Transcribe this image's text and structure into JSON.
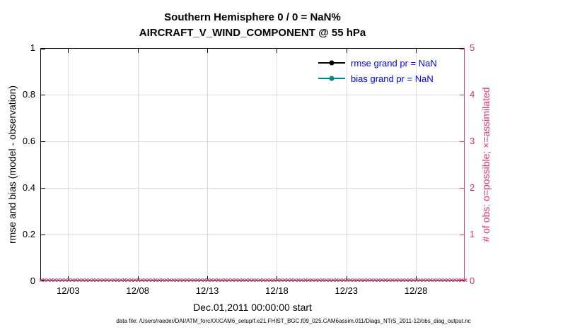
{
  "chart_data": {
    "type": "line",
    "title": "Southern Hemisphere 0 / 0 = NaN%",
    "subtitle": "AIRCRAFT_V_WIND_COMPONENT @ 55 hPa",
    "xlabel": "Dec.01,2011 00:00:00 start",
    "ylabel_left": "rmse and bias (model - observation)",
    "ylabel_right": "# of obs: o=possible; ×=assimilated",
    "ylim_left": [
      0,
      1
    ],
    "ylim_right": [
      0,
      5
    ],
    "yticks_left": [
      "0",
      "0.2",
      "0.4",
      "0.6",
      "0.8",
      "1"
    ],
    "yticks_right": [
      "0",
      "1",
      "2",
      "3",
      "4",
      "5"
    ],
    "x_range_days": [
      1,
      31.5
    ],
    "xticks": [
      {
        "day": 3,
        "label": "12/03"
      },
      {
        "day": 8,
        "label": "12/08"
      },
      {
        "day": 13,
        "label": "12/13"
      },
      {
        "day": 18,
        "label": "12/18"
      },
      {
        "day": 23,
        "label": "12/23"
      },
      {
        "day": 28,
        "label": "12/28"
      }
    ],
    "grid": true,
    "legend": [
      {
        "label": "rmse grand pr = NaN",
        "color": "#000000"
      },
      {
        "label": "bias grand pr = NaN",
        "color": "#008888"
      }
    ],
    "legend_text_color": "#0000ff",
    "series": [
      {
        "name": "rmse",
        "axis": "left",
        "grand_pr": "NaN",
        "values": [],
        "note": "NaN - no line plotted"
      },
      {
        "name": "bias",
        "axis": "left",
        "grand_pr": "NaN",
        "values": [],
        "note": "NaN - no line plotted"
      },
      {
        "name": "# of obs possible (o)",
        "axis": "right",
        "constant_value": 0
      },
      {
        "name": "# of obs assimilated (×)",
        "axis": "right",
        "constant_value": 0
      }
    ],
    "obs_marker": "×",
    "obs_marker_step_days": 0.25,
    "colors": {
      "right_axis": "#d6336c",
      "grid": "#dcdcdc",
      "axis": "#000000"
    },
    "footer": "data file: /Users/raeder/DAI/ATM_forcXX/CAM6_setup/f.e21.FHIST_BGC.f09_025.CAM6assim.011/Diags_NTrS_2011-12/obs_diag_output.nc"
  }
}
